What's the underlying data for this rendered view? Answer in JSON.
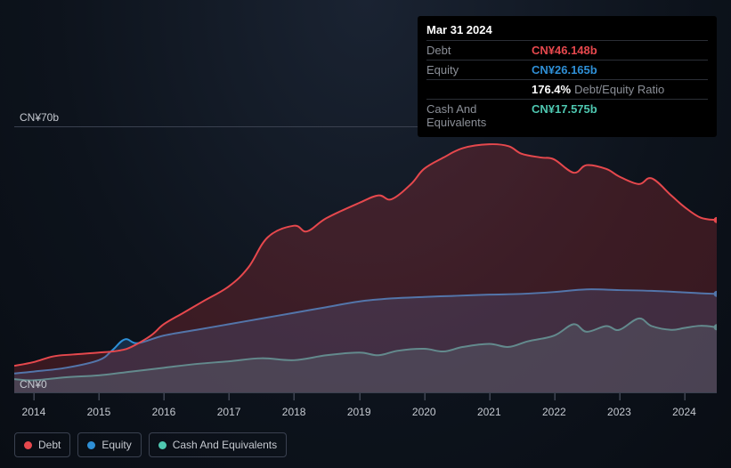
{
  "tooltip": {
    "date": "Mar 31 2024",
    "rows": [
      {
        "label": "Debt",
        "value": "CN¥46.148b",
        "color": "red"
      },
      {
        "label": "Equity",
        "value": "CN¥26.165b",
        "color": "blue"
      },
      {
        "label": "",
        "value": "176.4%",
        "sub": "Debt/Equity Ratio",
        "color": "white"
      },
      {
        "label": "Cash And Equivalents",
        "value": "CN¥17.575b",
        "color": "teal"
      }
    ]
  },
  "y_axis": {
    "max_label": "CN¥70b",
    "min_label": "CN¥0",
    "ylim": [
      0,
      70
    ]
  },
  "x_axis": {
    "ticks": [
      "2014",
      "2015",
      "2016",
      "2017",
      "2018",
      "2019",
      "2020",
      "2021",
      "2022",
      "2023",
      "2024"
    ],
    "domain": [
      2013.7,
      2024.5
    ]
  },
  "series": {
    "debt": {
      "label": "Debt",
      "color": "#e6484d",
      "fill": "rgba(180,52,58,0.28)",
      "points": [
        [
          2013.7,
          7
        ],
        [
          2014,
          8
        ],
        [
          2014.3,
          9.5
        ],
        [
          2014.6,
          10
        ],
        [
          2015,
          10.5
        ],
        [
          2015.3,
          11
        ],
        [
          2015.5,
          12
        ],
        [
          2015.8,
          15
        ],
        [
          2016,
          18
        ],
        [
          2016.3,
          21
        ],
        [
          2016.6,
          24
        ],
        [
          2017,
          28
        ],
        [
          2017.3,
          33
        ],
        [
          2017.6,
          41
        ],
        [
          2018,
          44
        ],
        [
          2018.2,
          42.5
        ],
        [
          2018.5,
          46
        ],
        [
          2019,
          50
        ],
        [
          2019.3,
          52
        ],
        [
          2019.5,
          51
        ],
        [
          2019.8,
          55
        ],
        [
          2020,
          59
        ],
        [
          2020.3,
          62
        ],
        [
          2020.6,
          64.5
        ],
        [
          2021,
          65.5
        ],
        [
          2021.3,
          65
        ],
        [
          2021.5,
          63
        ],
        [
          2021.8,
          62
        ],
        [
          2022,
          61.5
        ],
        [
          2022.3,
          58
        ],
        [
          2022.5,
          60
        ],
        [
          2022.8,
          59
        ],
        [
          2023,
          57
        ],
        [
          2023.3,
          55
        ],
        [
          2023.5,
          56.5
        ],
        [
          2023.8,
          52
        ],
        [
          2024,
          49
        ],
        [
          2024.25,
          46.15
        ],
        [
          2024.5,
          45.5
        ]
      ]
    },
    "equity": {
      "label": "Equity",
      "color": "#2e8fd6",
      "fill": "rgba(46,110,170,0.30)",
      "points": [
        [
          2013.7,
          5
        ],
        [
          2014,
          5.5
        ],
        [
          2014.5,
          6.5
        ],
        [
          2015,
          8.5
        ],
        [
          2015.2,
          11
        ],
        [
          2015.4,
          14
        ],
        [
          2015.6,
          13
        ],
        [
          2016,
          15
        ],
        [
          2016.5,
          16.5
        ],
        [
          2017,
          18
        ],
        [
          2017.5,
          19.5
        ],
        [
          2018,
          21
        ],
        [
          2018.5,
          22.5
        ],
        [
          2019,
          24
        ],
        [
          2019.5,
          24.8
        ],
        [
          2020,
          25.2
        ],
        [
          2020.5,
          25.5
        ],
        [
          2021,
          25.8
        ],
        [
          2021.5,
          26
        ],
        [
          2022,
          26.5
        ],
        [
          2022.5,
          27.2
        ],
        [
          2023,
          27
        ],
        [
          2023.5,
          26.8
        ],
        [
          2024,
          26.4
        ],
        [
          2024.25,
          26.165
        ],
        [
          2024.5,
          26
        ]
      ]
    },
    "cash": {
      "label": "Cash And Equivalents",
      "color": "#4ec7b0",
      "fill": "rgba(78,160,150,0.30)",
      "points": [
        [
          2013.7,
          3.5
        ],
        [
          2014,
          3.2
        ],
        [
          2014.5,
          4
        ],
        [
          2015,
          4.5
        ],
        [
          2015.5,
          5.5
        ],
        [
          2016,
          6.5
        ],
        [
          2016.5,
          7.5
        ],
        [
          2017,
          8.2
        ],
        [
          2017.5,
          9
        ],
        [
          2018,
          8.5
        ],
        [
          2018.5,
          9.8
        ],
        [
          2019,
          10.5
        ],
        [
          2019.3,
          9.8
        ],
        [
          2019.6,
          11
        ],
        [
          2020,
          11.5
        ],
        [
          2020.3,
          10.8
        ],
        [
          2020.6,
          12
        ],
        [
          2021,
          12.8
        ],
        [
          2021.3,
          12
        ],
        [
          2021.6,
          13.5
        ],
        [
          2022,
          15
        ],
        [
          2022.3,
          18
        ],
        [
          2022.5,
          16
        ],
        [
          2022.8,
          17.5
        ],
        [
          2023,
          16.5
        ],
        [
          2023.3,
          19.5
        ],
        [
          2023.5,
          17.5
        ],
        [
          2023.8,
          16.5
        ],
        [
          2024,
          17
        ],
        [
          2024.25,
          17.575
        ],
        [
          2024.5,
          17.2
        ]
      ]
    }
  },
  "legend": [
    {
      "key": "debt",
      "label": "Debt",
      "color": "#e6484d"
    },
    {
      "key": "equity",
      "label": "Equity",
      "color": "#2e8fd6"
    },
    {
      "key": "cash",
      "label": "Cash And Equivalents",
      "color": "#4ec7b0"
    }
  ],
  "colors": {
    "grid": "#3a4150",
    "text": "#c5c9d0"
  }
}
